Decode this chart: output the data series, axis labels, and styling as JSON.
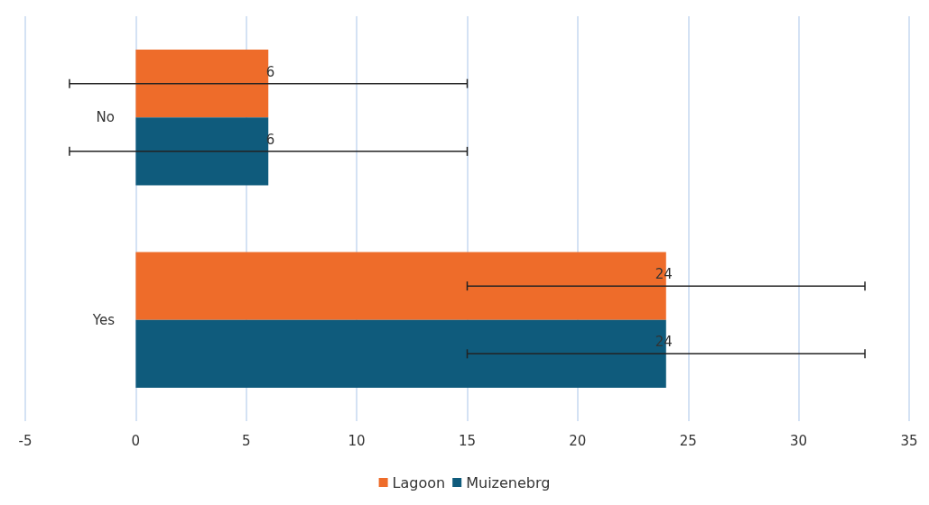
{
  "chart_data": {
    "type": "bar",
    "orientation": "horizontal",
    "categories": [
      "No",
      "Yes"
    ],
    "series": [
      {
        "name": "Lagoon",
        "color": "#ee6c2a",
        "values": [
          6,
          24
        ],
        "errors": [
          9,
          9
        ]
      },
      {
        "name": "Muizenebrg",
        "color": "#0f5b7c",
        "values": [
          6,
          24
        ],
        "errors": [
          9,
          9
        ]
      }
    ],
    "xlim": [
      -5,
      35
    ],
    "xticks": [
      -5,
      0,
      5,
      10,
      15,
      20,
      25,
      30,
      35
    ],
    "grid": "x",
    "legend": "bottom",
    "data_labels": true
  }
}
